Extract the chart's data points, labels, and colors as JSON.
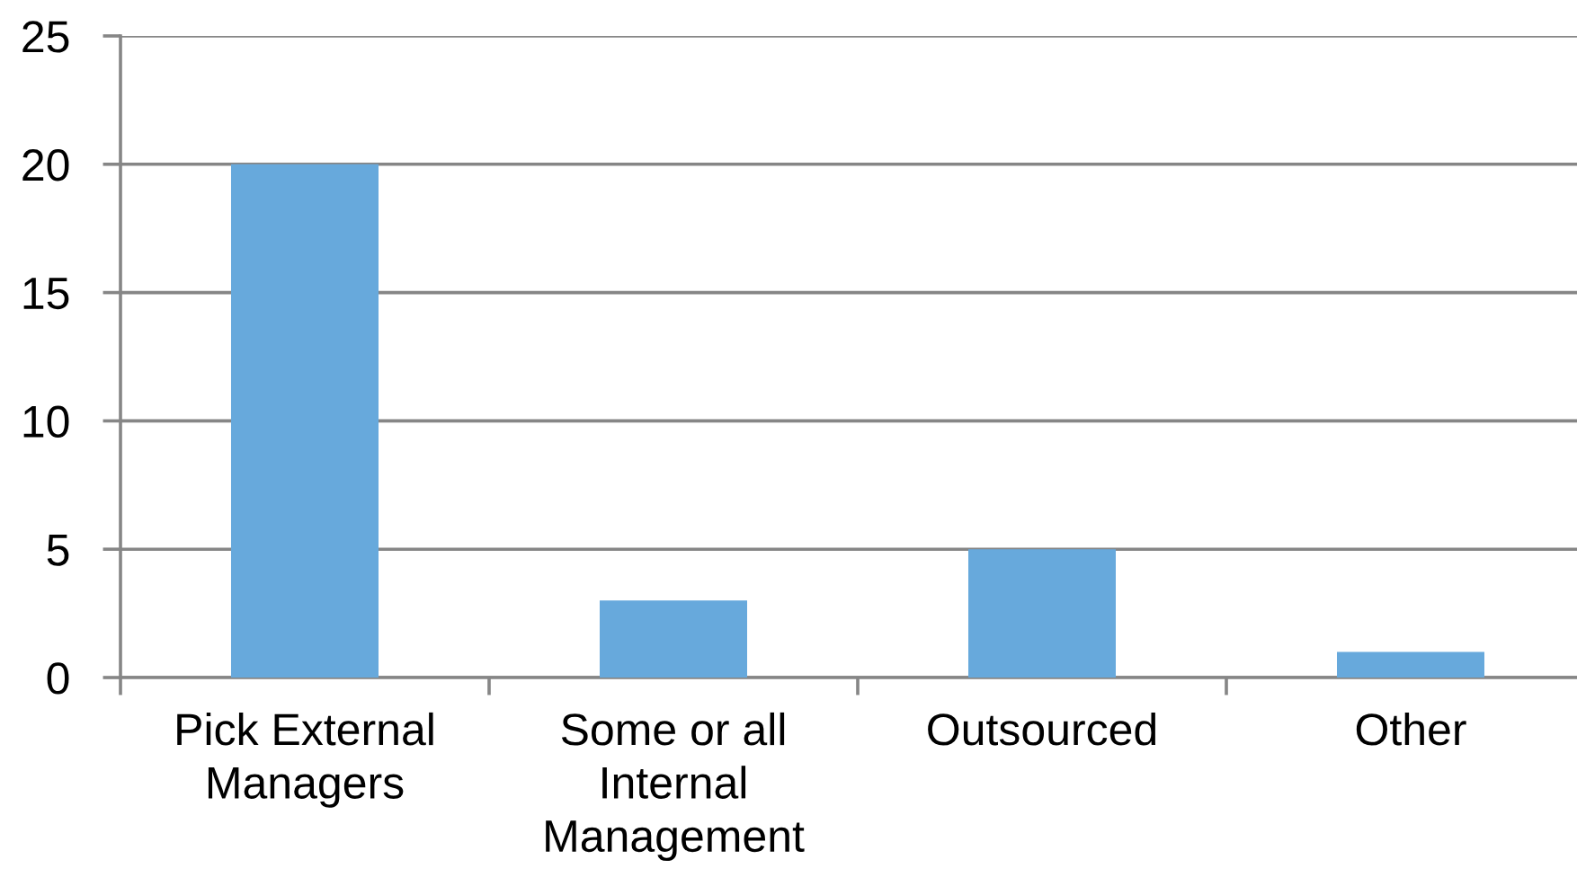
{
  "chart_data": {
    "type": "bar",
    "categories": [
      "Pick External Managers",
      "Some or all Internal Management",
      "Outsourced",
      "Other"
    ],
    "values": [
      20,
      3,
      5,
      1
    ],
    "color": "#67a9dc",
    "ylim": [
      0,
      25
    ],
    "yticks": [
      0,
      5,
      10,
      15,
      20,
      25
    ],
    "grid": "y"
  }
}
